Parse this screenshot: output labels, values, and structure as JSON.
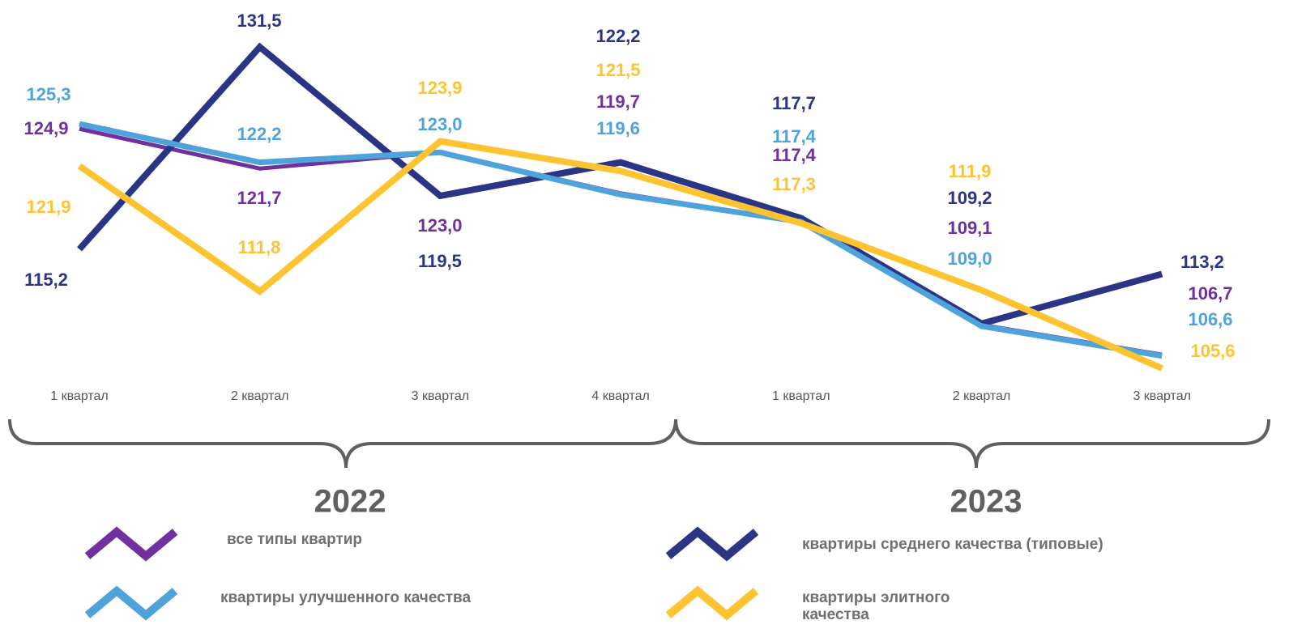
{
  "chart_data": {
    "type": "line",
    "categories": [
      "1 квартал",
      "2 квартал",
      "3 квартал",
      "4 квартал",
      "1 квартал",
      "2 квартал",
      "3 квартал"
    ],
    "group_labels": [
      "2022",
      "2023"
    ],
    "series": [
      {
        "name": "все типы квартир",
        "color": "#7030a0",
        "values": [
          124.9,
          121.7,
          123.0,
          119.7,
          117.4,
          109.1,
          106.7
        ],
        "value_labels": [
          "124,9",
          "121,7",
          "123,0",
          "119,7",
          "117,4",
          "109,1",
          "106,7"
        ]
      },
      {
        "name": "квартиры среднего качества (типовые)",
        "color": "#2b3585",
        "values": [
          115.2,
          131.5,
          119.5,
          122.2,
          117.7,
          109.2,
          113.2
        ],
        "value_labels": [
          "115,2",
          "131,5",
          "119,5",
          "122,2",
          "117,7",
          "109,2",
          "113,2"
        ]
      },
      {
        "name": "квартиры улучшенного качества",
        "color": "#4fa3db",
        "values": [
          125.3,
          122.2,
          123.0,
          119.6,
          117.4,
          109.0,
          106.6
        ],
        "value_labels": [
          "125,3",
          "122,2",
          "123,0",
          "119,6",
          "117,4",
          "109,0",
          "106,6"
        ]
      },
      {
        "name": "квартиры элитного качества",
        "color": "#fdc331",
        "values": [
          121.9,
          111.8,
          123.9,
          121.5,
          117.3,
          111.9,
          105.6
        ],
        "value_labels": [
          "121,9",
          "111,8",
          "123,9",
          "121,5",
          "117,3",
          "111,9",
          "105,6"
        ]
      }
    ]
  }
}
